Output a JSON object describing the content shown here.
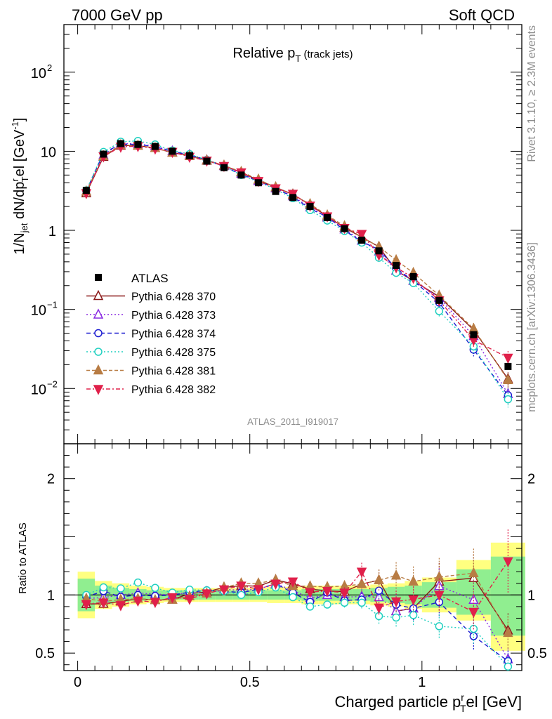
{
  "header": {
    "left": "7000 GeV pp",
    "right": "Soft QCD"
  },
  "side": {
    "upper": "Rivet 3.1.10, ≥ 2.3M events",
    "lower": "mcplots.cern.ch [arXiv:1306.3436]"
  },
  "colors": {
    "yellow": "#ffff80",
    "green": "#90ee90",
    "ref": "#000000"
  },
  "chart_data": {
    "type": "line",
    "title": "Relative p_T (track jets)",
    "analysis_label": "ATLAS_2011_I919017",
    "xlabel": "Charged particle p_T^rel [GeV]",
    "ylabel": "1/N_jet dN/dp_T^rel [GeV^-1]",
    "ratio_ylabel": "Ratio to ATLAS",
    "xlim": [
      -0.04,
      1.29
    ],
    "ylim": [
      0.002,
      400
    ],
    "yscale": "log",
    "ratio_ylim": [
      0.35,
      2.3
    ],
    "grid": false,
    "legend_position": "middle-left",
    "xticks": [
      {
        "v": 0,
        "label": "0"
      },
      {
        "v": 0.5,
        "label": "0.5"
      },
      {
        "v": 1,
        "label": "1"
      }
    ],
    "yticks": [
      {
        "v": 0.01,
        "base": "10",
        "exp": "−2"
      },
      {
        "v": 0.1,
        "base": "10",
        "exp": "−1"
      },
      {
        "v": 1,
        "base": "1",
        "exp": ""
      },
      {
        "v": 10,
        "base": "10",
        "exp": ""
      },
      {
        "v": 100,
        "base": "10",
        "exp": "2"
      }
    ],
    "ratio_yticks": [
      {
        "v": 0.5,
        "label": "0.5"
      },
      {
        "v": 1,
        "label": "1"
      },
      {
        "v": 2,
        "label": "2"
      }
    ],
    "x": [
      0.025,
      0.075,
      0.125,
      0.175,
      0.225,
      0.275,
      0.325,
      0.375,
      0.425,
      0.475,
      0.525,
      0.575,
      0.625,
      0.675,
      0.725,
      0.775,
      0.825,
      0.875,
      0.925,
      0.975,
      1.05,
      1.15,
      1.25
    ],
    "xlow": [
      0,
      0.05,
      0.1,
      0.15,
      0.2,
      0.25,
      0.3,
      0.35,
      0.4,
      0.45,
      0.5,
      0.55,
      0.6,
      0.65,
      0.7,
      0.75,
      0.8,
      0.85,
      0.9,
      0.95,
      1.0,
      1.1,
      1.2
    ],
    "xhigh": [
      0.05,
      0.1,
      0.15,
      0.2,
      0.25,
      0.3,
      0.35,
      0.4,
      0.45,
      0.5,
      0.55,
      0.6,
      0.65,
      0.7,
      0.75,
      0.8,
      0.85,
      0.9,
      0.95,
      1.0,
      1.1,
      1.2,
      1.3
    ],
    "ref": {
      "name": "ATLAS",
      "values": [
        3.2,
        9.2,
        12.5,
        12.2,
        11.5,
        10.0,
        8.8,
        7.5,
        6.2,
        5.0,
        4.0,
        3.1,
        2.6,
        2.0,
        1.45,
        1.05,
        0.75,
        0.55,
        0.36,
        0.26,
        0.13,
        0.048,
        0.019
      ],
      "band_yellow": [
        [
          0.8,
          1.2
        ],
        [
          0.88,
          1.12
        ],
        [
          0.9,
          1.1
        ],
        [
          0.92,
          1.08
        ],
        [
          0.93,
          1.07
        ],
        [
          0.94,
          1.06
        ],
        [
          0.94,
          1.06
        ],
        [
          0.94,
          1.06
        ],
        [
          0.94,
          1.06
        ],
        [
          0.94,
          1.06
        ],
        [
          0.94,
          1.06
        ],
        [
          0.93,
          1.07
        ],
        [
          0.93,
          1.07
        ],
        [
          0.92,
          1.08
        ],
        [
          0.92,
          1.08
        ],
        [
          0.92,
          1.08
        ],
        [
          0.92,
          1.08
        ],
        [
          0.91,
          1.09
        ],
        [
          0.9,
          1.1
        ],
        [
          0.88,
          1.12
        ],
        [
          0.85,
          1.15
        ],
        [
          0.78,
          1.3
        ],
        [
          0.52,
          1.45
        ]
      ],
      "band_green": [
        [
          0.86,
          1.14
        ],
        [
          0.92,
          1.08
        ],
        [
          0.94,
          1.06
        ],
        [
          0.95,
          1.05
        ],
        [
          0.96,
          1.04
        ],
        [
          0.96,
          1.04
        ],
        [
          0.96,
          1.04
        ],
        [
          0.96,
          1.04
        ],
        [
          0.96,
          1.04
        ],
        [
          0.96,
          1.04
        ],
        [
          0.96,
          1.04
        ],
        [
          0.96,
          1.04
        ],
        [
          0.96,
          1.04
        ],
        [
          0.95,
          1.05
        ],
        [
          0.95,
          1.05
        ],
        [
          0.95,
          1.05
        ],
        [
          0.95,
          1.05
        ],
        [
          0.94,
          1.06
        ],
        [
          0.93,
          1.07
        ],
        [
          0.92,
          1.08
        ],
        [
          0.89,
          1.11
        ],
        [
          0.83,
          1.22
        ],
        [
          0.65,
          1.33
        ]
      ]
    },
    "series": [
      {
        "name": "Pythia 6.428 370",
        "color": "#8b1a1a",
        "marker": "tri-up-open",
        "dash": "",
        "values": [
          2.95,
          8.5,
          11.8,
          11.8,
          11.0,
          9.6,
          8.9,
          7.7,
          6.6,
          5.4,
          4.3,
          3.5,
          2.85,
          2.1,
          1.5,
          1.08,
          0.82,
          0.62,
          0.31,
          0.23,
          0.145,
          0.055,
          0.0132
        ]
      },
      {
        "name": "Pythia 6.428 373",
        "color": "#8a2be2",
        "marker": "tri-up-open",
        "dash": "2,3",
        "values": [
          3.1,
          9.0,
          12.5,
          12.4,
          11.6,
          10.0,
          9.0,
          7.6,
          6.5,
          5.2,
          4.2,
          3.4,
          2.7,
          1.95,
          1.45,
          1.03,
          0.74,
          0.54,
          0.31,
          0.23,
          0.14,
          0.046,
          0.0085
        ]
      },
      {
        "name": "Pythia 6.428 374",
        "color": "#1c1cd0",
        "marker": "circle-open",
        "dash": "6,4",
        "values": [
          3.15,
          9.5,
          12.3,
          12.2,
          11.4,
          10.0,
          9.0,
          7.8,
          6.4,
          5.1,
          4.2,
          3.4,
          2.65,
          1.88,
          1.48,
          1.0,
          0.72,
          0.57,
          0.33,
          0.23,
          0.122,
          0.031,
          0.0082
        ]
      },
      {
        "name": "Pythia 6.428 375",
        "color": "#20d0c0",
        "marker": "circle-open",
        "dash": "2,3",
        "values": [
          3.2,
          9.8,
          13.2,
          13.5,
          12.2,
          10.2,
          9.2,
          7.8,
          6.4,
          5.0,
          4.1,
          3.3,
          2.55,
          1.8,
          1.33,
          0.98,
          0.7,
          0.45,
          0.29,
          0.215,
          0.095,
          0.034,
          0.0073
        ]
      },
      {
        "name": "Pythia 6.428 381",
        "color": "#b87c44",
        "marker": "tri-up-filled",
        "dash": "5,3",
        "values": [
          3.1,
          8.7,
          12.0,
          11.8,
          11.0,
          9.6,
          8.7,
          7.6,
          6.6,
          5.5,
          4.4,
          3.5,
          2.8,
          2.15,
          1.55,
          1.13,
          0.82,
          0.62,
          0.42,
          0.29,
          0.15,
          0.057,
          0.0128
        ]
      },
      {
        "name": "Pythia 6.428 382",
        "color": "#e0204a",
        "marker": "tri-down-filled",
        "dash": "6,3,2,3",
        "values": [
          2.95,
          8.6,
          11.4,
          11.6,
          10.8,
          9.8,
          8.5,
          7.6,
          6.5,
          5.4,
          4.2,
          3.4,
          2.9,
          2.05,
          1.5,
          1.07,
          0.9,
          0.49,
          0.34,
          0.25,
          0.13,
          0.041,
          0.0245
        ]
      }
    ]
  }
}
